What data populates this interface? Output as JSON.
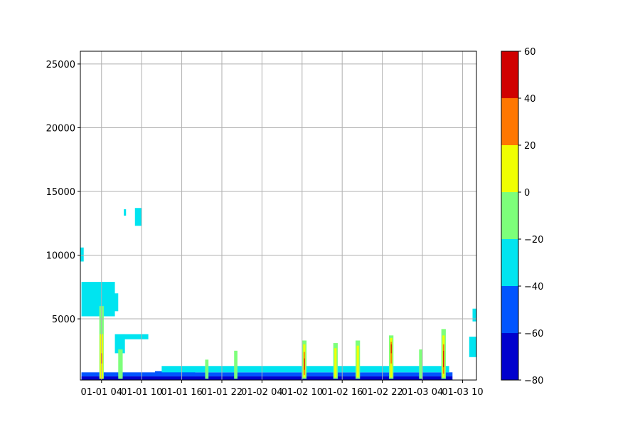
{
  "chart_data": {
    "type": "heatmap",
    "title": "",
    "xlabel": "",
    "ylabel": "",
    "x_ticks": [
      "01-01 04",
      "01-01 10",
      "01-01 16",
      "01-01 22",
      "01-02 04",
      "01-02 10",
      "01-02 16",
      "01-02 22",
      "01-03 04",
      "01-03 10"
    ],
    "xlim": [
      "01-01 00:50",
      "01-03 12:05"
    ],
    "y_ticks": [
      5000,
      10000,
      15000,
      20000,
      25000
    ],
    "ylim": [
      200,
      26000
    ],
    "grid": true,
    "colorbar": {
      "levels": [
        -80,
        -60,
        -40,
        -20,
        0,
        20,
        40,
        60
      ],
      "colors": [
        "#0000cd",
        "#0055ff",
        "#00e4f0",
        "#7dff7a",
        "#f0ff00",
        "#ff7700",
        "#d00000"
      ],
      "tick_labels": [
        "−80",
        "−60",
        "−40",
        "−20",
        "0",
        "20",
        "40",
        "60"
      ]
    },
    "regions": [
      {
        "level": 1,
        "x": [
          "01-01 01:00",
          "01-03 08:30"
        ],
        "y": [
          200,
          500
        ]
      },
      {
        "level": 2,
        "x": [
          "01-01 01:00",
          "01-03 08:30"
        ],
        "y": [
          500,
          800
        ]
      },
      {
        "level": 2,
        "x": [
          "01-01 12:00",
          "01-01 18:00"
        ],
        "y": [
          500,
          900
        ]
      },
      {
        "level": 3,
        "x": [
          "01-01 13:00",
          "01-03 08:00"
        ],
        "y": [
          800,
          1300
        ]
      },
      {
        "level": 3,
        "x": [
          "01-01 01:00",
          "01-01 06:00"
        ],
        "y": [
          5200,
          7900
        ]
      },
      {
        "level": 3,
        "x": [
          "01-01 04:00",
          "01-01 06:30"
        ],
        "y": [
          5600,
          7000
        ]
      },
      {
        "level": 3,
        "x": [
          "01-01 00:50",
          "01-01 01:20"
        ],
        "y": [
          9500,
          10600
        ]
      },
      {
        "level": 3,
        "x": [
          "01-01 09:00",
          "01-01 10:00"
        ],
        "y": [
          12300,
          13700
        ]
      },
      {
        "level": 3,
        "x": [
          "01-01 07:20",
          "01-01 07:40"
        ],
        "y": [
          13100,
          13600
        ]
      },
      {
        "level": 3,
        "x": [
          "01-01 07:00",
          "01-01 11:00"
        ],
        "y": [
          3400,
          3800
        ]
      },
      {
        "level": 3,
        "x": [
          "01-01 06:00",
          "01-01 07:30"
        ],
        "y": [
          2300,
          3800
        ]
      },
      {
        "level": 3,
        "x": [
          "01-03 11:00",
          "01-03 12:05"
        ],
        "y": [
          2000,
          3600
        ]
      },
      {
        "level": 3,
        "x": [
          "01-03 11:30",
          "01-03 12:05"
        ],
        "y": [
          4800,
          5800
        ]
      },
      {
        "level": 4,
        "x": [
          "01-01 03:40",
          "01-01 04:20"
        ],
        "y": [
          300,
          6000
        ]
      },
      {
        "level": 4,
        "x": [
          "01-01 06:30",
          "01-01 07:10"
        ],
        "y": [
          300,
          2600
        ]
      },
      {
        "level": 4,
        "x": [
          "01-01 19:30",
          "01-01 20:00"
        ],
        "y": [
          300,
          1800
        ]
      },
      {
        "level": 4,
        "x": [
          "01-01 23:50",
          "01-02 00:20"
        ],
        "y": [
          300,
          2500
        ]
      },
      {
        "level": 4,
        "x": [
          "01-02 10:00",
          "01-02 10:40"
        ],
        "y": [
          300,
          3300
        ]
      },
      {
        "level": 4,
        "x": [
          "01-02 14:40",
          "01-02 15:20"
        ],
        "y": [
          300,
          3100
        ]
      },
      {
        "level": 4,
        "x": [
          "01-02 18:00",
          "01-02 18:40"
        ],
        "y": [
          300,
          3300
        ]
      },
      {
        "level": 4,
        "x": [
          "01-02 23:00",
          "01-02 23:40"
        ],
        "y": [
          300,
          3700
        ]
      },
      {
        "level": 4,
        "x": [
          "01-03 03:30",
          "01-03 04:00"
        ],
        "y": [
          300,
          2600
        ]
      },
      {
        "level": 4,
        "x": [
          "01-03 06:50",
          "01-03 07:30"
        ],
        "y": [
          300,
          4200
        ]
      },
      {
        "level": 5,
        "x": [
          "01-01 03:45",
          "01-01 04:15"
        ],
        "y": [
          300,
          3800
        ]
      },
      {
        "level": 5,
        "x": [
          "01-02 10:10",
          "01-02 10:30"
        ],
        "y": [
          400,
          3000
        ]
      },
      {
        "level": 5,
        "x": [
          "01-02 14:50",
          "01-02 15:10"
        ],
        "y": [
          400,
          2700
        ]
      },
      {
        "level": 5,
        "x": [
          "01-02 18:10",
          "01-02 18:30"
        ],
        "y": [
          400,
          2900
        ]
      },
      {
        "level": 5,
        "x": [
          "01-02 23:10",
          "01-02 23:30"
        ],
        "y": [
          400,
          3500
        ]
      },
      {
        "level": 5,
        "x": [
          "01-03 07:00",
          "01-03 07:20"
        ],
        "y": [
          400,
          3700
        ]
      },
      {
        "level": 6,
        "x": [
          "01-02 10:15",
          "01-02 10:25"
        ],
        "y": [
          600,
          2400
        ]
      },
      {
        "level": 6,
        "x": [
          "01-02 23:15",
          "01-02 23:25"
        ],
        "y": [
          1500,
          3200
        ]
      },
      {
        "level": 6,
        "x": [
          "01-03 07:05",
          "01-03 07:15"
        ],
        "y": [
          700,
          3000
        ]
      },
      {
        "level": 7,
        "x": [
          "01-02 10:18",
          "01-02 10:23"
        ],
        "y": [
          1000,
          1900
        ]
      },
      {
        "level": 7,
        "x": [
          "01-02 23:17",
          "01-02 23:23"
        ],
        "y": [
          2300,
          3000
        ]
      },
      {
        "level": 7,
        "x": [
          "01-03 07:07",
          "01-03 07:13"
        ],
        "y": [
          1200,
          2500
        ]
      },
      {
        "level": 7,
        "x": [
          "01-01 03:55",
          "01-01 04:05"
        ],
        "y": [
          1500,
          2300
        ]
      }
    ]
  }
}
